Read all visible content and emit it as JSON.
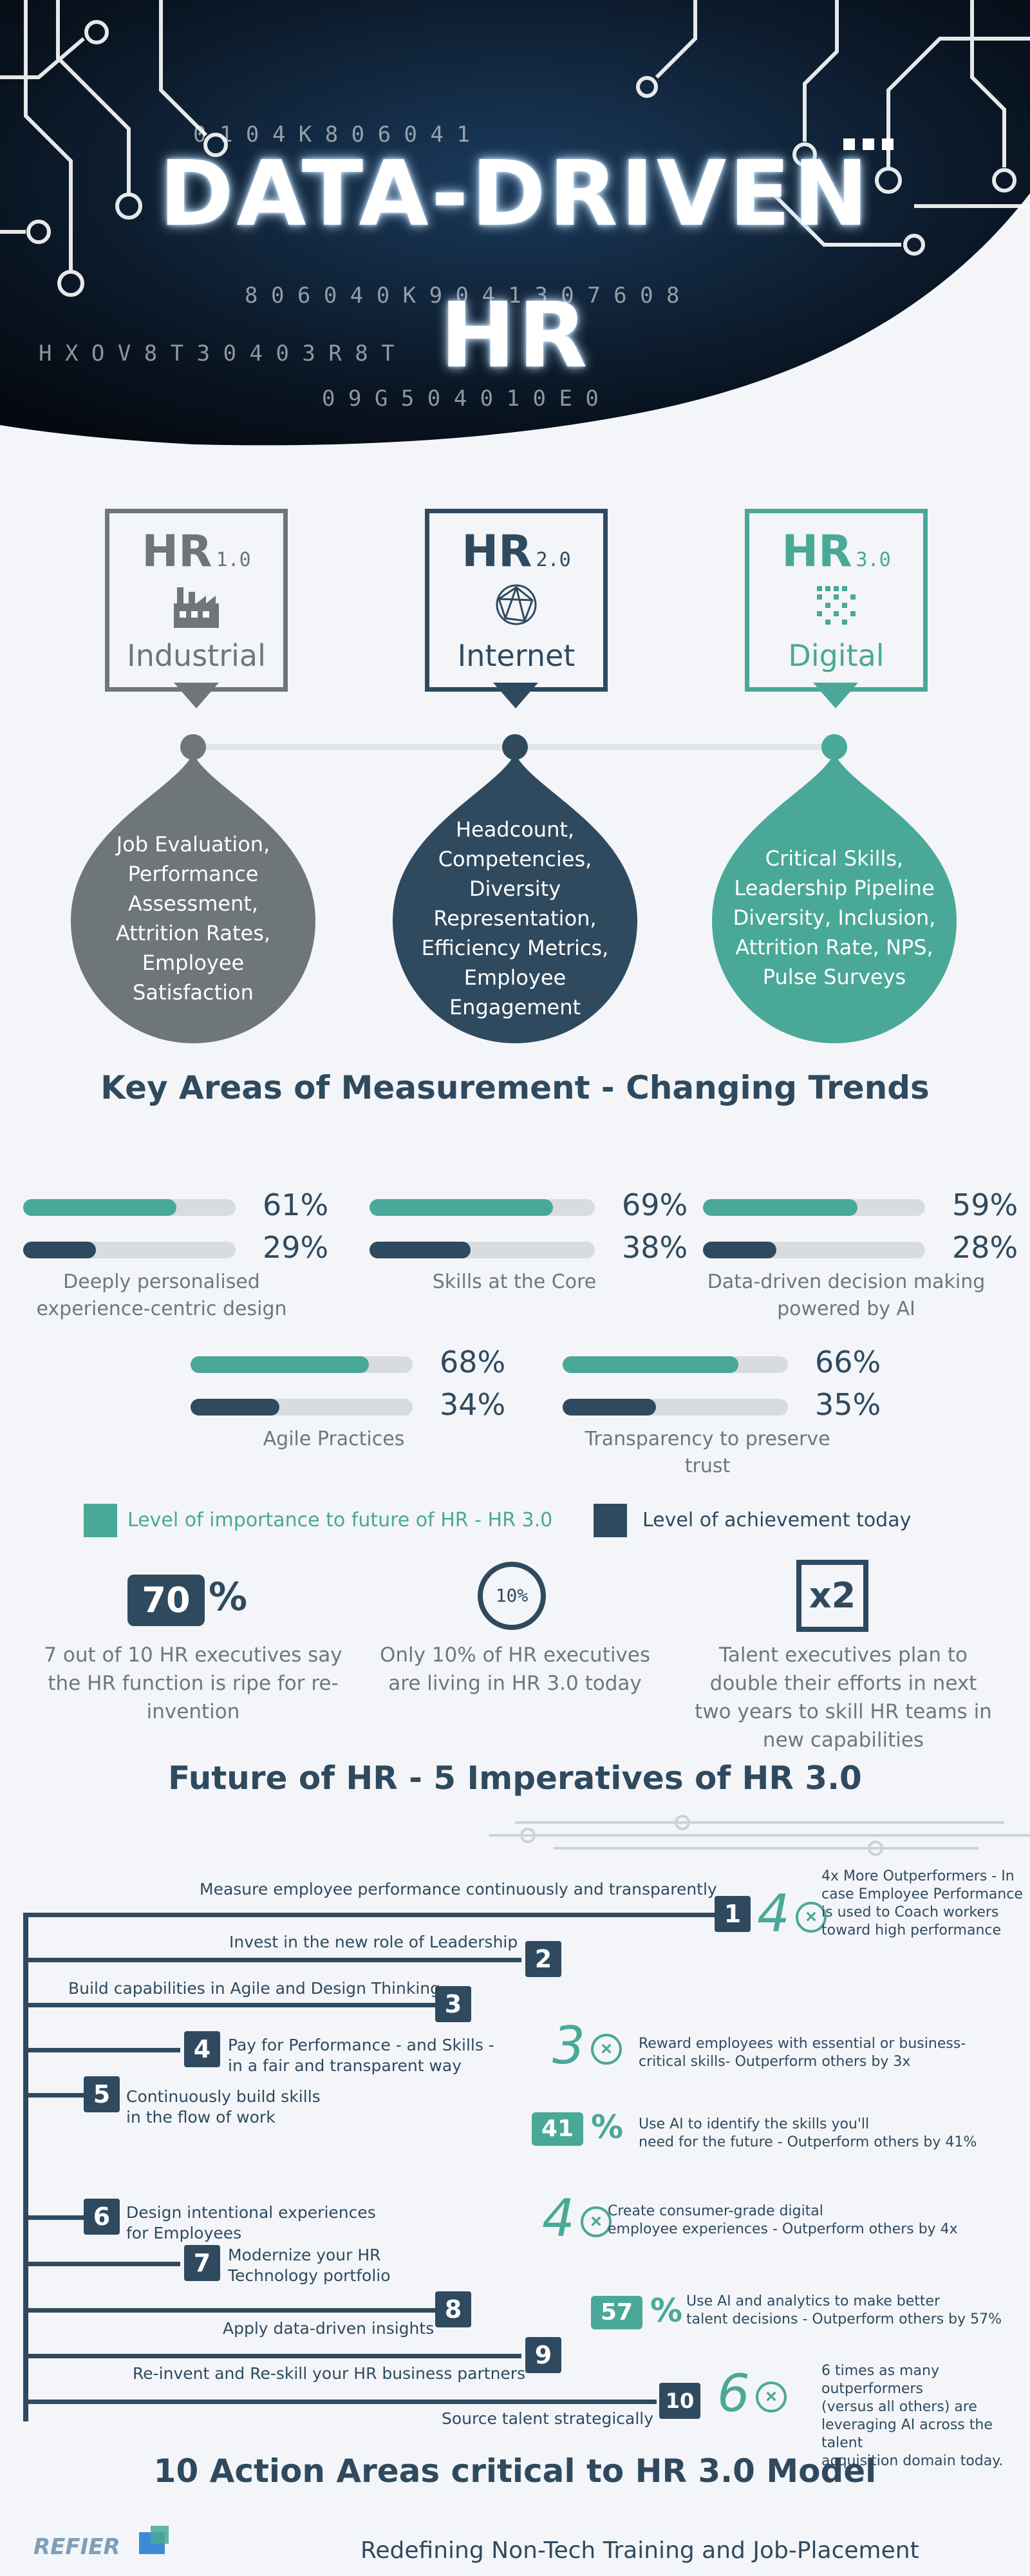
{
  "hero": {
    "title_line1": "DATA-DRIVEN",
    "title_line2": "HR"
  },
  "eras": [
    {
      "prefix": "HR",
      "version": "1.0",
      "name": "Industrial",
      "icon": "factory-icon",
      "color": "#6e7677",
      "measures": [
        "Job Evaluation,",
        "Performance",
        "Assessment,",
        "Attrition Rates,",
        "Employee",
        "Satisfaction"
      ]
    },
    {
      "prefix": "HR",
      "version": "2.0",
      "name": "Internet",
      "icon": "globe-network-icon",
      "color": "#2f4a5f",
      "measures": [
        "Headcount,",
        "Competencies,",
        "Diversity",
        "Representation,",
        "Efficiency Metrics,",
        "Employee",
        "Engagement"
      ]
    },
    {
      "prefix": "HR",
      "version": "3.0",
      "name": "Digital",
      "icon": "digital-chip-icon",
      "color": "#4aa898",
      "measures": [
        "Critical Skills,",
        "Leadership Pipeline",
        "Diversity, Inclusion,",
        "Attrition Rate, NPS,",
        "Pulse Surveys"
      ]
    }
  ],
  "section1_title": "Key Areas of Measurement - Changing Trends",
  "colors": {
    "importance": "#4aa898",
    "achievement": "#2f4a5f",
    "track": "#d9dcdf"
  },
  "chart_data": {
    "type": "bar",
    "categories": [
      "Deeply personalised experience-centric design",
      "Skills at the Core",
      "Data-driven decision making powered by AI",
      "Agile Practices",
      "Transparency to preserve trust"
    ],
    "series": [
      {
        "name": "Level of importance to future of HR - HR 3.0",
        "values": [
          61,
          69,
          59,
          68,
          66
        ]
      },
      {
        "name": "Level of achievement today",
        "values": [
          29,
          38,
          28,
          34,
          35
        ]
      }
    ],
    "ylim": [
      0,
      100
    ]
  },
  "bars": [
    {
      "label_lines": [
        "Deeply personalised",
        "experience-centric design"
      ],
      "importance": 61,
      "achievement": 29,
      "importance_text": "61%",
      "achievement_text": "29%"
    },
    {
      "label_lines": [
        "Skills at the Core"
      ],
      "importance": 69,
      "achievement": 38,
      "importance_text": "69%",
      "achievement_text": "38%"
    },
    {
      "label_lines": [
        "Data-driven decision making",
        "powered by AI"
      ],
      "importance": 59,
      "achievement": 28,
      "importance_text": "59%",
      "achievement_text": "28%"
    },
    {
      "label_lines": [
        "Agile Practices"
      ],
      "importance": 68,
      "achievement": 34,
      "importance_text": "68%",
      "achievement_text": "34%"
    },
    {
      "label_lines": [
        "Transparency to preserve",
        "trust"
      ],
      "importance": 66,
      "achievement": 35,
      "importance_text": "66%",
      "achievement_text": "35%"
    }
  ],
  "legend": {
    "importance": "Level of importance to future of HR - HR 3.0",
    "achievement": "Level of achievement today"
  },
  "stats": [
    {
      "badge": "70",
      "badge_suffix": "%",
      "lines": [
        "7 out of 10 HR executives say",
        "the HR function is ripe for re-",
        "invention"
      ]
    },
    {
      "badge": "10%",
      "lines": [
        "Only 10% of HR executives",
        "are living in HR 3.0 today"
      ]
    },
    {
      "badge": "x2",
      "lines": [
        "Talent executives plan to",
        "double their efforts in next",
        "two years to skill HR teams in",
        "new capabilities"
      ]
    }
  ],
  "section2_title": "Future of HR - 5 Imperatives of HR 3.0",
  "imperatives": [
    {
      "num": "1",
      "text": "Measure employee performance continuously and transparently"
    },
    {
      "num": "2",
      "text": "Invest in the new role of Leadership"
    },
    {
      "num": "3",
      "text": "Build capabilities in Agile and Design Thinking"
    },
    {
      "num": "4",
      "text": "Pay for Performance - and Skills -",
      "text2": "in a fair and transparent way"
    },
    {
      "num": "5",
      "text": "Continuously build skills",
      "text2": "in the flow of work"
    },
    {
      "num": "6",
      "text": "Design intentional experiences",
      "text2": "for Employees"
    },
    {
      "num": "7",
      "text": "Modernize your HR",
      "text2": "Technology portfolio"
    },
    {
      "num": "8",
      "text": "Apply data-driven insights"
    },
    {
      "num": "9",
      "text": "Re-invent and Re-skill your HR business partners"
    },
    {
      "num": "10",
      "text": "Source talent strategically"
    }
  ],
  "outcomes": [
    {
      "big": "4",
      "mark": "⊗",
      "lines": [
        "4x More Outperformers - In",
        "case Employee Performance",
        "is used to Coach workers",
        "toward high performance"
      ]
    },
    {
      "big": "3",
      "mark": "⊗",
      "lines": [
        "Reward employees with essential or business-",
        "critical skills- Outperform others by 3x"
      ]
    },
    {
      "big": "41",
      "mark": "%",
      "lines": [
        "Use AI to identify the skills you'll",
        "need for the future - Outperform others by 41%"
      ]
    },
    {
      "big": "4",
      "mark": "⊗",
      "lines": [
        "Create consumer-grade digital",
        "employee experiences - Outperform others by 4x"
      ]
    },
    {
      "big": "57",
      "mark": "%",
      "lines": [
        "Use AI and analytics to make better",
        "talent decisions - Outperform others by 57%"
      ]
    },
    {
      "big": "6",
      "mark": "⊗",
      "lines": [
        "6 times as many outperformers",
        "(versus all others) are",
        "leveraging AI across the talent",
        "acquisition domain today."
      ]
    }
  ],
  "section3_title": "10 Action Areas critical to HR 3.0 Model",
  "footer": {
    "logo": "REFIER",
    "tagline": "Redefining Non-Tech Training and Job-Placement"
  }
}
